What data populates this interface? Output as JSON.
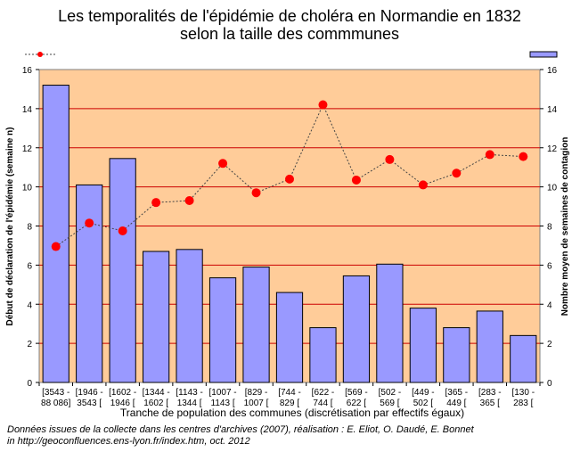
{
  "chart_data": {
    "type": "bar",
    "title_lines": [
      "Les temporalités de l'épidémie de choléra en Normandie en 1832",
      "selon la taille des commmunes"
    ],
    "xlabel": "Tranche de population des communes (discrétisation par effectifs égaux)",
    "ylabel_left": "Début de déclaration de l'épidémie (semaine n)",
    "ylabel_left_italic": "n",
    "ylabel_right": "Nombre moyen de semaines de contagion",
    "ylim": [
      0,
      16
    ],
    "yticks": [
      0,
      2,
      4,
      6,
      8,
      10,
      12,
      14,
      16
    ],
    "categories": [
      [
        "[3543 -",
        "88 086]"
      ],
      [
        "[1946 -",
        "3543 ["
      ],
      [
        "[1602 -",
        "1946 ["
      ],
      [
        "[1344 -",
        "1602 ["
      ],
      [
        "[1143 -",
        "1344 ["
      ],
      [
        "[1007 -",
        "1143 ["
      ],
      [
        "[829 -",
        "1007 ["
      ],
      [
        "[744 -",
        "829 ["
      ],
      [
        "[622 -",
        "744 ["
      ],
      [
        "[569 -",
        "622 ["
      ],
      [
        "[502 -",
        "569 ["
      ],
      [
        "[449 -",
        "502 ["
      ],
      [
        "[365 -",
        "449 ["
      ],
      [
        "[283 -",
        "365 ["
      ],
      [
        "[130 -",
        "283 ["
      ]
    ],
    "series": [
      {
        "kind": "bar",
        "axis": "left",
        "color": "#9999ff",
        "values": [
          15.2,
          10.1,
          11.45,
          6.7,
          6.8,
          5.35,
          5.9,
          4.6,
          2.8,
          5.45,
          6.05,
          3.8,
          2.8,
          3.65,
          2.4
        ]
      },
      {
        "kind": "line",
        "axis": "right",
        "color": "#ff0000",
        "values": [
          6.95,
          8.15,
          7.75,
          9.2,
          9.3,
          11.2,
          9.7,
          10.4,
          14.2,
          10.35,
          11.4,
          10.1,
          10.7,
          11.65,
          11.55
        ]
      }
    ],
    "plot_background": "#ffcc99",
    "gridline_color": "#cc0000",
    "grid": true
  },
  "footer": {
    "line1": "Données issues de la collecte dans les centres d'archives (2007), réalisation : E. Eliot, O. Daudé, E. Bonnet",
    "line2": "in http://geoconfluences.ens-lyon.fr/index.htm, oct. 2012"
  }
}
